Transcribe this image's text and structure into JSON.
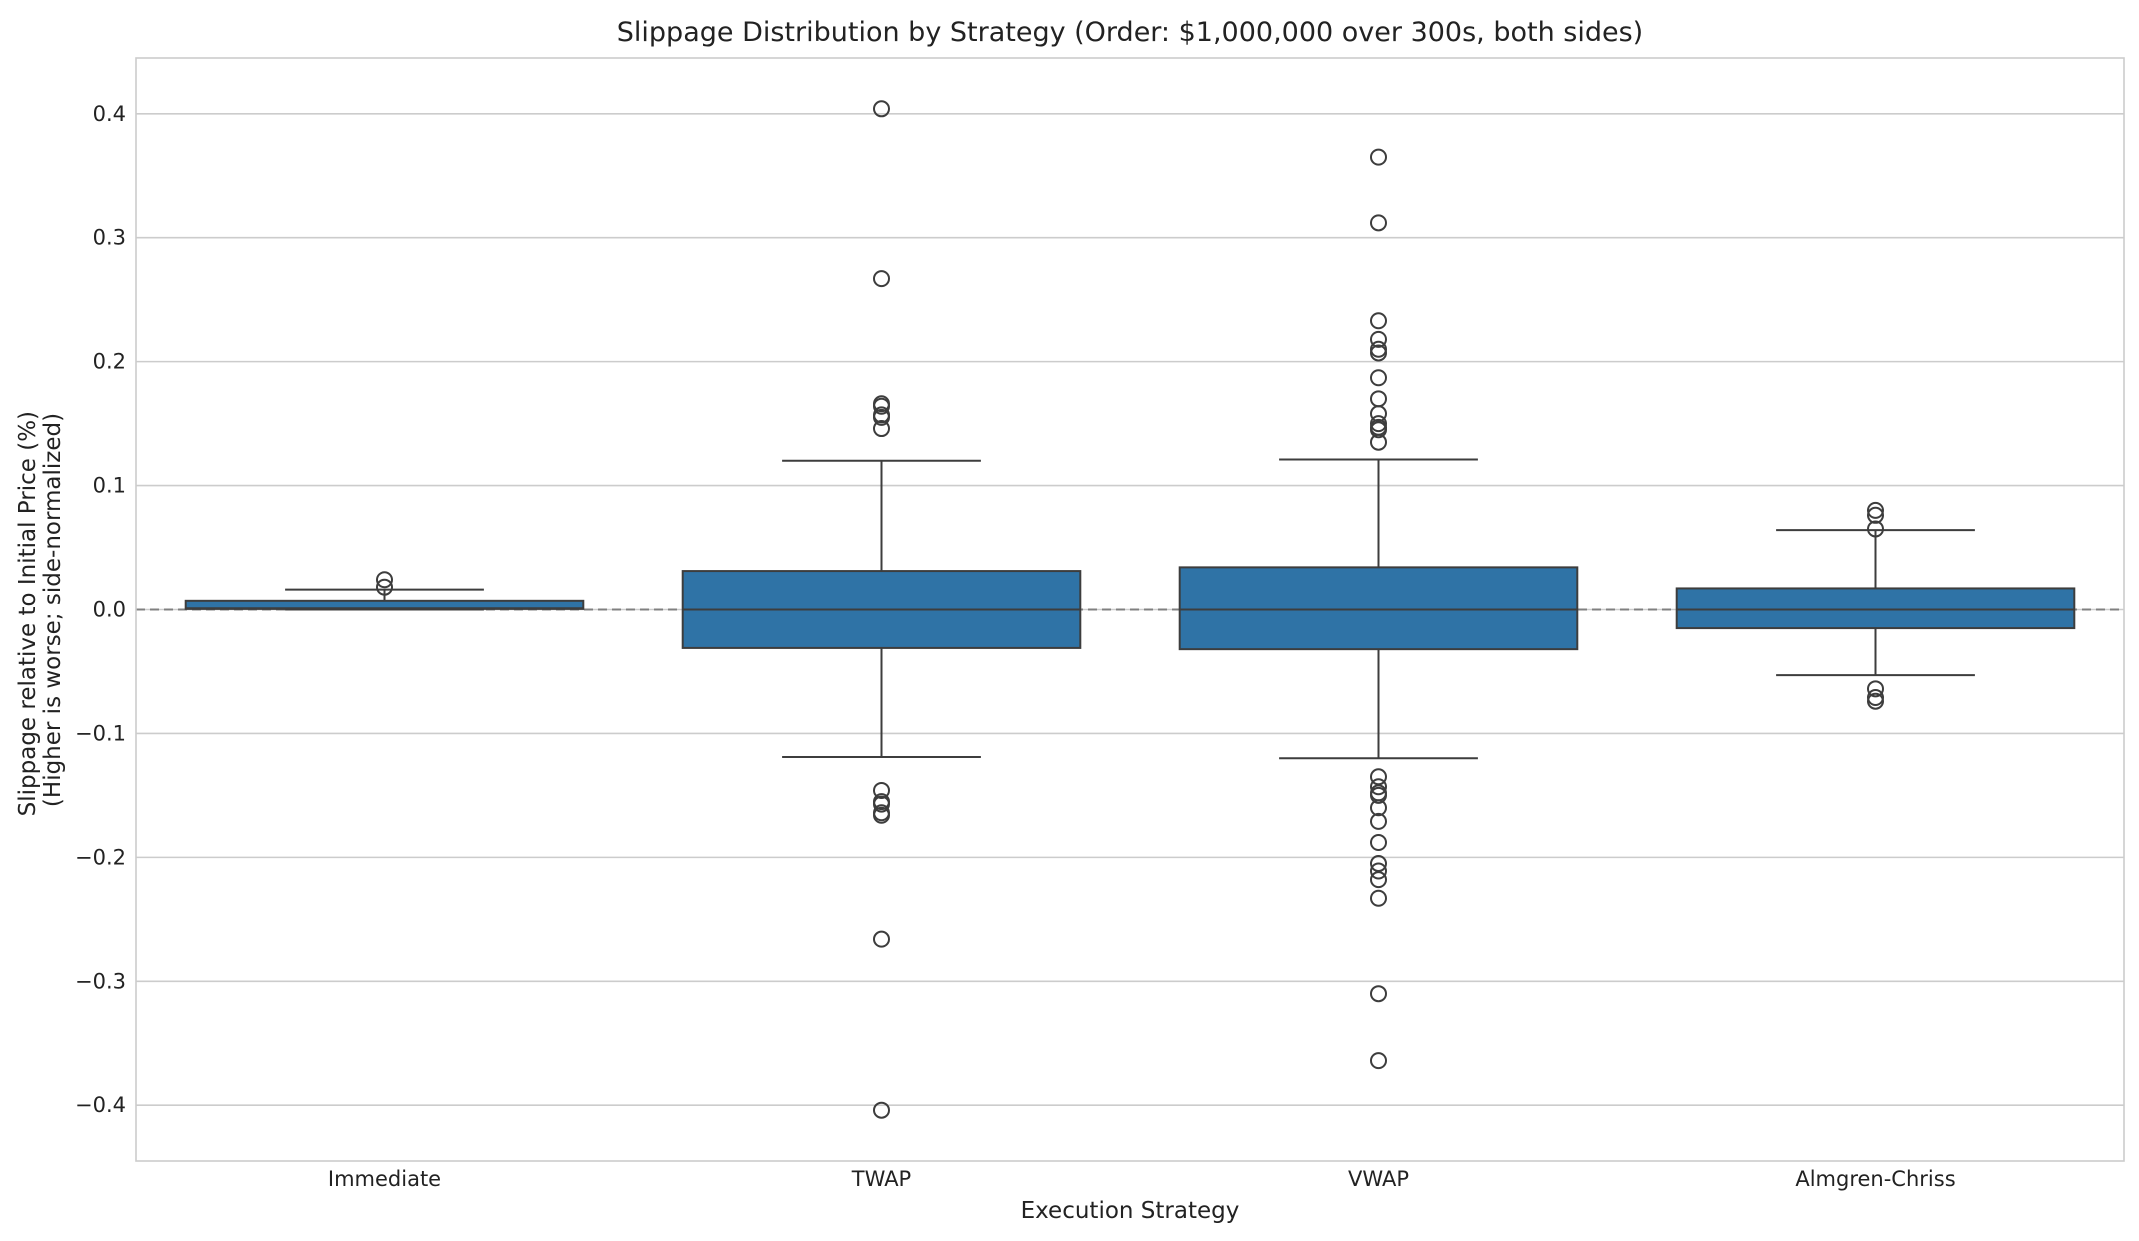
{
  "chart_data": {
    "type": "box",
    "title": "Slippage Distribution by Strategy (Order: $1,000,000 over 300s, both sides)",
    "xlabel": "Execution Strategy",
    "ylabel_lines": [
      "Slippage relative to Initial Price (%)",
      "(Higher is worse; side-normalized)"
    ],
    "ylim": [
      -0.445,
      0.445
    ],
    "yticks": [
      0.4,
      0.3,
      0.2,
      0.1,
      0.0,
      -0.1,
      -0.2,
      -0.3,
      -0.4
    ],
    "ytick_labels": [
      "0.4",
      "0.3",
      "0.2",
      "0.1",
      "0.0",
      "−0.1",
      "−0.2",
      "−0.3",
      "−0.4"
    ],
    "grid": true,
    "reference_line": 0.0,
    "box_color": "#2f73a6",
    "edge_color": "#3d3d3d",
    "categories": [
      "Immediate",
      "TWAP",
      "VWAP",
      "Almgren-Chriss"
    ],
    "boxes": [
      {
        "q1": 0.0005,
        "median": 0.001,
        "q3": 0.007,
        "whisker_low": 0.0,
        "whisker_high": 0.016,
        "outliers": [
          0.024,
          0.018
        ]
      },
      {
        "q1": -0.031,
        "median": 0.0,
        "q3": 0.031,
        "whisker_low": -0.119,
        "whisker_high": 0.12,
        "outliers": [
          0.404,
          0.267,
          0.166,
          0.164,
          0.157,
          0.155,
          0.146,
          -0.146,
          -0.155,
          -0.157,
          -0.164,
          -0.166,
          -0.266,
          -0.404
        ]
      },
      {
        "q1": -0.032,
        "median": 0.0,
        "q3": 0.034,
        "whisker_low": -0.12,
        "whisker_high": 0.121,
        "outliers": [
          0.365,
          0.312,
          0.233,
          0.218,
          0.21,
          0.207,
          0.187,
          0.17,
          0.158,
          0.15,
          0.147,
          0.145,
          0.135,
          -0.135,
          -0.143,
          -0.148,
          -0.15,
          -0.16,
          -0.171,
          -0.188,
          -0.205,
          -0.211,
          -0.218,
          -0.233,
          -0.31,
          -0.364
        ]
      },
      {
        "q1": -0.015,
        "median": 0.0,
        "q3": 0.017,
        "whisker_low": -0.053,
        "whisker_high": 0.064,
        "outliers": [
          0.08,
          0.076,
          0.065,
          -0.064,
          -0.071,
          -0.074
        ]
      }
    ]
  }
}
